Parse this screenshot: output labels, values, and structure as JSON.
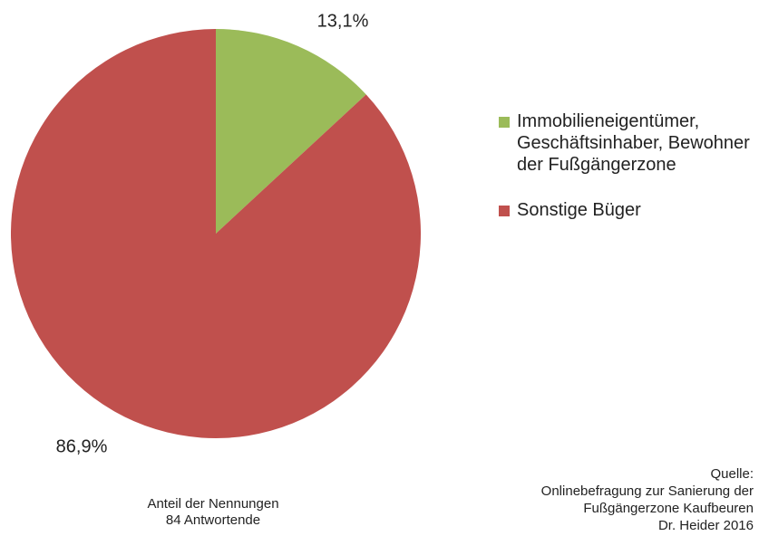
{
  "chart_data": {
    "type": "pie",
    "categories": [
      "Immobilieneigentümer, Geschäftsinhaber, Bewohner der Fußgängerzone",
      "Sonstige Büger"
    ],
    "values": [
      13.1,
      86.9
    ],
    "value_labels": [
      "13,1%",
      "86,9%"
    ],
    "colors": [
      "#9bbb59",
      "#c0504d"
    ],
    "notes": [
      "Anteil der Nennungen",
      "84 Antwortende"
    ],
    "source": [
      "Quelle:",
      "Onlinebefragung zur Sanierung der",
      "Fußgängerzone Kaufbeuren",
      "Dr. Heider 2016"
    ]
  }
}
